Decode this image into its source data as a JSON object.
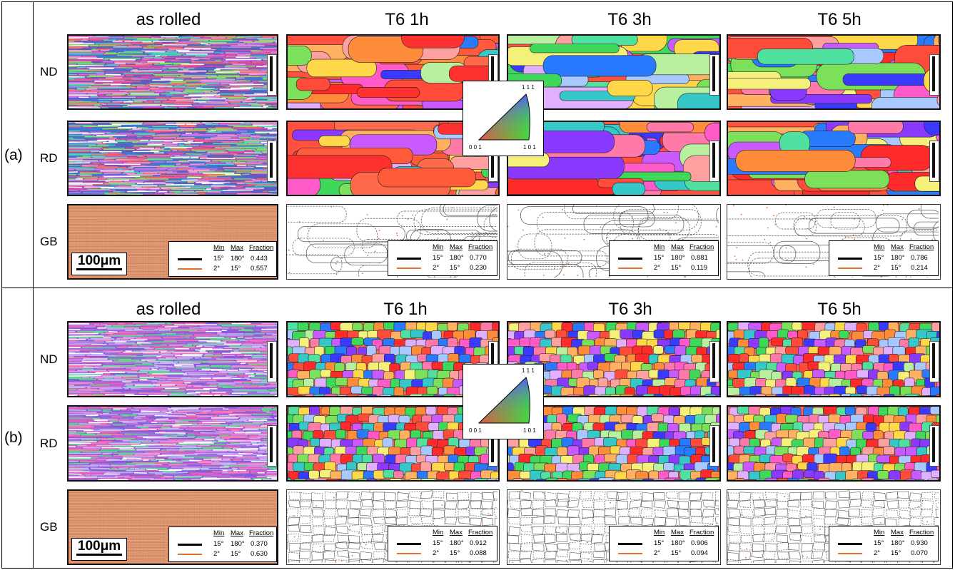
{
  "figure": {
    "columns": [
      "as rolled",
      "T6 1h",
      "T6 3h",
      "T6 5h"
    ],
    "row_labels": [
      "ND",
      "RD",
      "GB"
    ],
    "panels": [
      {
        "label": "(a)",
        "kind": "elongated",
        "legends": [
          {
            "hdr_min": "Min",
            "hdr_max": "Max",
            "hdr_fraction": "Fraction",
            "rows": [
              {
                "min": "15°",
                "max": "180°",
                "fraction": "0.443"
              },
              {
                "min": "2°",
                "max": "15°",
                "fraction": "0.557"
              }
            ]
          },
          {
            "hdr_min": "Min",
            "hdr_max": "Max",
            "hdr_fraction": "Fraction",
            "rows": [
              {
                "min": "15°",
                "max": "180°",
                "fraction": "0.770"
              },
              {
                "min": "2°",
                "max": "15°",
                "fraction": "0.230"
              }
            ]
          },
          {
            "hdr_min": "Min",
            "hdr_max": "Max",
            "hdr_fraction": "Fraction",
            "rows": [
              {
                "min": "15°",
                "max": "180°",
                "fraction": "0.881"
              },
              {
                "min": "2°",
                "max": "15°",
                "fraction": "0.119"
              }
            ]
          },
          {
            "hdr_min": "Min",
            "hdr_max": "Max",
            "hdr_fraction": "Fraction",
            "rows": [
              {
                "min": "15°",
                "max": "180°",
                "fraction": "0.786"
              },
              {
                "min": "2°",
                "max": "15°",
                "fraction": "0.214"
              }
            ]
          }
        ]
      },
      {
        "label": "(b)",
        "kind": "equiaxed",
        "legends": [
          {
            "hdr_min": "Min",
            "hdr_max": "Max",
            "hdr_fraction": "Fraction",
            "rows": [
              {
                "min": "15°",
                "max": "180°",
                "fraction": "0.370"
              },
              {
                "min": "2°",
                "max": "15°",
                "fraction": "0.630"
              }
            ]
          },
          {
            "hdr_min": "Min",
            "hdr_max": "Max",
            "hdr_fraction": "Fraction",
            "rows": [
              {
                "min": "15°",
                "max": "180°",
                "fraction": "0.912"
              },
              {
                "min": "2°",
                "max": "15°",
                "fraction": "0.088"
              }
            ]
          },
          {
            "hdr_min": "Min",
            "hdr_max": "Max",
            "hdr_fraction": "Fraction",
            "rows": [
              {
                "min": "15°",
                "max": "180°",
                "fraction": "0.906"
              },
              {
                "min": "2°",
                "max": "15°",
                "fraction": "0.094"
              }
            ]
          },
          {
            "hdr_min": "Min",
            "hdr_max": "Max",
            "hdr_fraction": "Fraction",
            "rows": [
              {
                "min": "15°",
                "max": "180°",
                "fraction": "0.930"
              },
              {
                "min": "2°",
                "max": "15°",
                "fraction": "0.070"
              }
            ]
          }
        ]
      }
    ],
    "scale_bar_label": "100μm",
    "ipf_key": {
      "top": "1 1 1",
      "left": "0 0 1",
      "right": "1 0 1"
    },
    "colors": {
      "hagb": "#000000",
      "lagb": "#e0702a",
      "as_rolled_gb_fill": "#e8a07a"
    }
  }
}
